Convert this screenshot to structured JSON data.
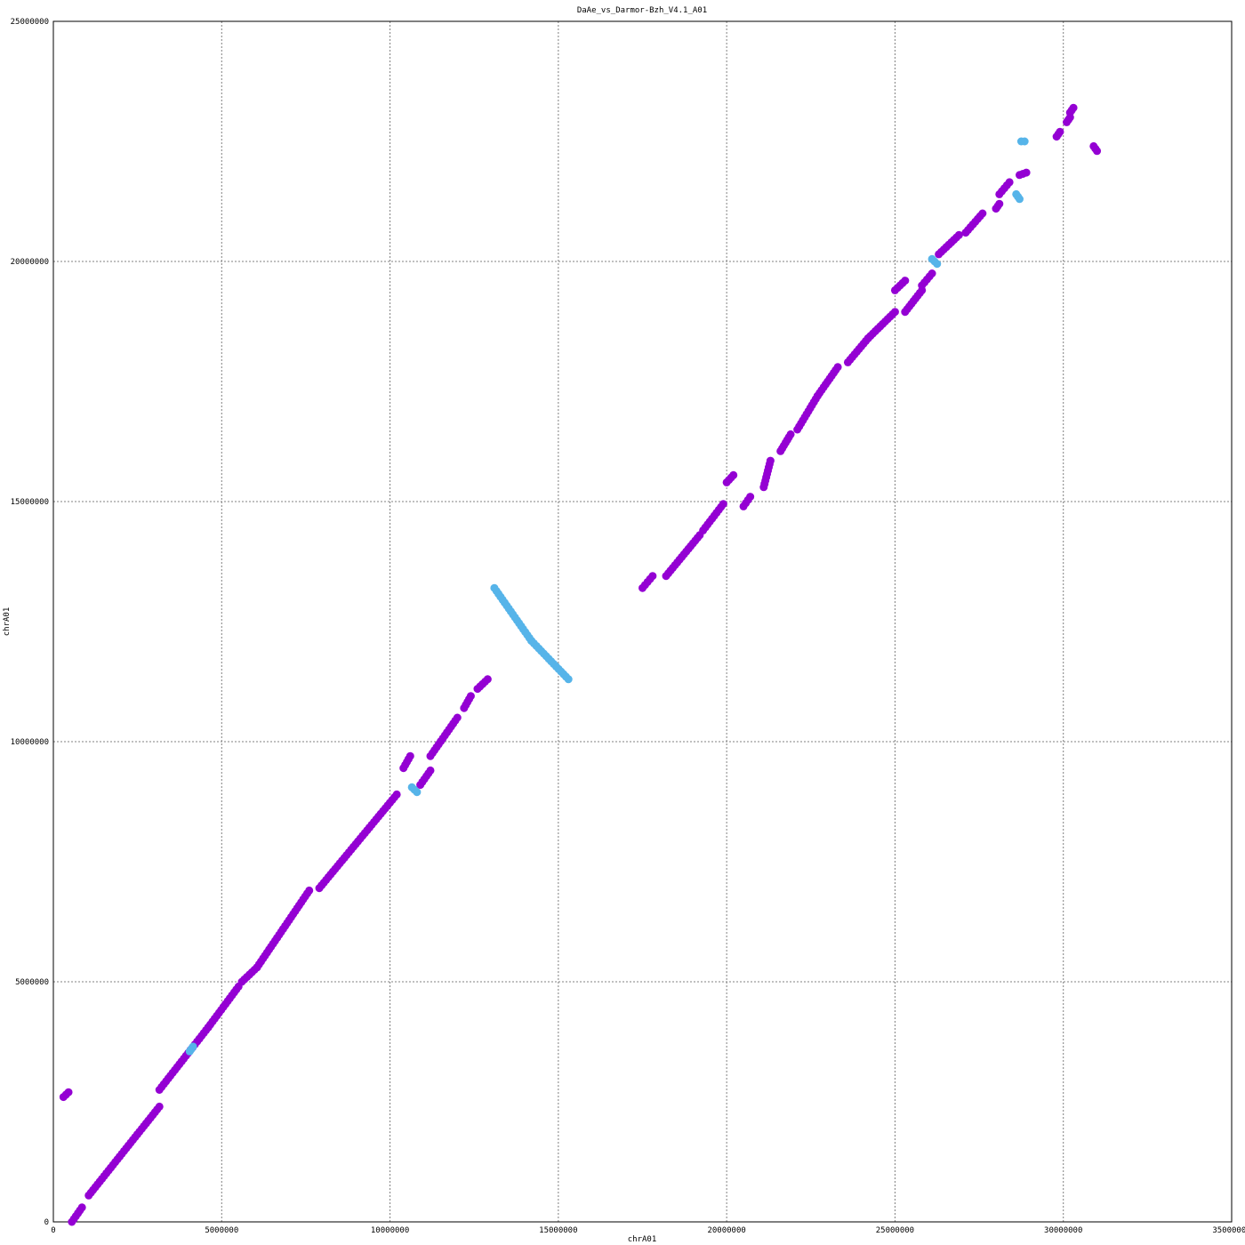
{
  "chart_data": {
    "type": "scatter",
    "title": "DaAe_vs_Darmor-Bzh_V4.1_A01",
    "xlabel": "chrA01",
    "ylabel": "chrA01",
    "xlim": [
      0,
      35000000
    ],
    "ylim": [
      0,
      25000000
    ],
    "x_ticks": [
      "0",
      "5000000",
      "10000000",
      "15000000",
      "20000000",
      "25000000",
      "30000000",
      "35000000"
    ],
    "y_ticks": [
      "0",
      "5000000",
      "10000000",
      "15000000",
      "20000000",
      "25000000"
    ],
    "grid": true,
    "colors": {
      "forward": "#9400d3",
      "reverse": "#56b4e9"
    },
    "series": [
      {
        "orientation": "forward",
        "segments": [
          [
            [
              300000,
              2600000
            ],
            [
              450000,
              2700000
            ]
          ],
          [
            [
              550000,
              0
            ],
            [
              850000,
              300000
            ]
          ],
          [
            [
              1050000,
              550000
            ],
            [
              3150000,
              2400000
            ]
          ],
          [
            [
              3150000,
              2750000
            ],
            [
              4600000,
              4050000
            ]
          ],
          [
            [
              4600000,
              4050000
            ],
            [
              5500000,
              4900000
            ]
          ],
          [
            [
              5600000,
              5000000
            ],
            [
              6050000,
              5300000
            ]
          ],
          [
            [
              6050000,
              5300000
            ],
            [
              7600000,
              6900000
            ]
          ],
          [
            [
              7900000,
              6950000
            ],
            [
              10200000,
              8900000
            ]
          ],
          [
            [
              10400000,
              9450000
            ],
            [
              10600000,
              9700000
            ]
          ],
          [
            [
              10900000,
              9100000
            ],
            [
              11200000,
              9400000
            ]
          ],
          [
            [
              11200000,
              9700000
            ],
            [
              12000000,
              10500000
            ]
          ],
          [
            [
              12200000,
              10700000
            ],
            [
              12400000,
              10950000
            ]
          ],
          [
            [
              12600000,
              11100000
            ],
            [
              12900000,
              11300000
            ]
          ],
          [
            [
              17500000,
              13200000
            ],
            [
              17800000,
              13450000
            ]
          ],
          [
            [
              18200000,
              13450000
            ],
            [
              19200000,
              14300000
            ]
          ],
          [
            [
              19300000,
              14400000
            ],
            [
              19900000,
              14950000
            ]
          ],
          [
            [
              20000000,
              15400000
            ],
            [
              20200000,
              15550000
            ]
          ],
          [
            [
              20500000,
              14900000
            ],
            [
              20700000,
              15100000
            ]
          ],
          [
            [
              21100000,
              15300000
            ],
            [
              21300000,
              15850000
            ]
          ],
          [
            [
              21600000,
              16050000
            ],
            [
              21900000,
              16400000
            ]
          ],
          [
            [
              22100000,
              16500000
            ],
            [
              22700000,
              17200000
            ]
          ],
          [
            [
              22700000,
              17200000
            ],
            [
              23300000,
              17800000
            ]
          ],
          [
            [
              23600000,
              17900000
            ],
            [
              24200000,
              18400000
            ]
          ],
          [
            [
              24200000,
              18400000
            ],
            [
              25000000,
              18950000
            ]
          ],
          [
            [
              25000000,
              19400000
            ],
            [
              25300000,
              19600000
            ]
          ],
          [
            [
              25300000,
              18950000
            ],
            [
              25800000,
              19400000
            ]
          ],
          [
            [
              25800000,
              19500000
            ],
            [
              26100000,
              19750000
            ]
          ],
          [
            [
              26300000,
              20150000
            ],
            [
              26900000,
              20550000
            ]
          ],
          [
            [
              27100000,
              20600000
            ],
            [
              27600000,
              21000000
            ]
          ],
          [
            [
              28000000,
              21100000
            ],
            [
              28100000,
              21200000
            ]
          ],
          [
            [
              28100000,
              21400000
            ],
            [
              28400000,
              21650000
            ]
          ],
          [
            [
              28700000,
              21800000
            ],
            [
              28900000,
              21850000
            ]
          ],
          [
            [
              29800000,
              22600000
            ],
            [
              29900000,
              22700000
            ]
          ],
          [
            [
              30100000,
              22900000
            ],
            [
              30200000,
              23000000
            ]
          ],
          [
            [
              30200000,
              23100000
            ],
            [
              30300000,
              23200000
            ]
          ],
          [
            [
              30900000,
              22400000
            ],
            [
              31000000,
              22300000
            ]
          ]
        ]
      },
      {
        "orientation": "reverse",
        "segments": [
          [
            [
              4050000,
              3550000
            ],
            [
              4150000,
              3650000
            ]
          ],
          [
            [
              10650000,
              9050000
            ],
            [
              10800000,
              8950000
            ]
          ],
          [
            [
              13100000,
              13200000
            ],
            [
              14200000,
              12100000
            ]
          ],
          [
            [
              14200000,
              12100000
            ],
            [
              15300000,
              11300000
            ]
          ],
          [
            [
              26100000,
              20050000
            ],
            [
              26250000,
              19950000
            ]
          ],
          [
            [
              28600000,
              21400000
            ],
            [
              28700000,
              21300000
            ]
          ],
          [
            [
              28750000,
              22500000
            ],
            [
              28850000,
              22500000
            ]
          ]
        ]
      }
    ]
  }
}
